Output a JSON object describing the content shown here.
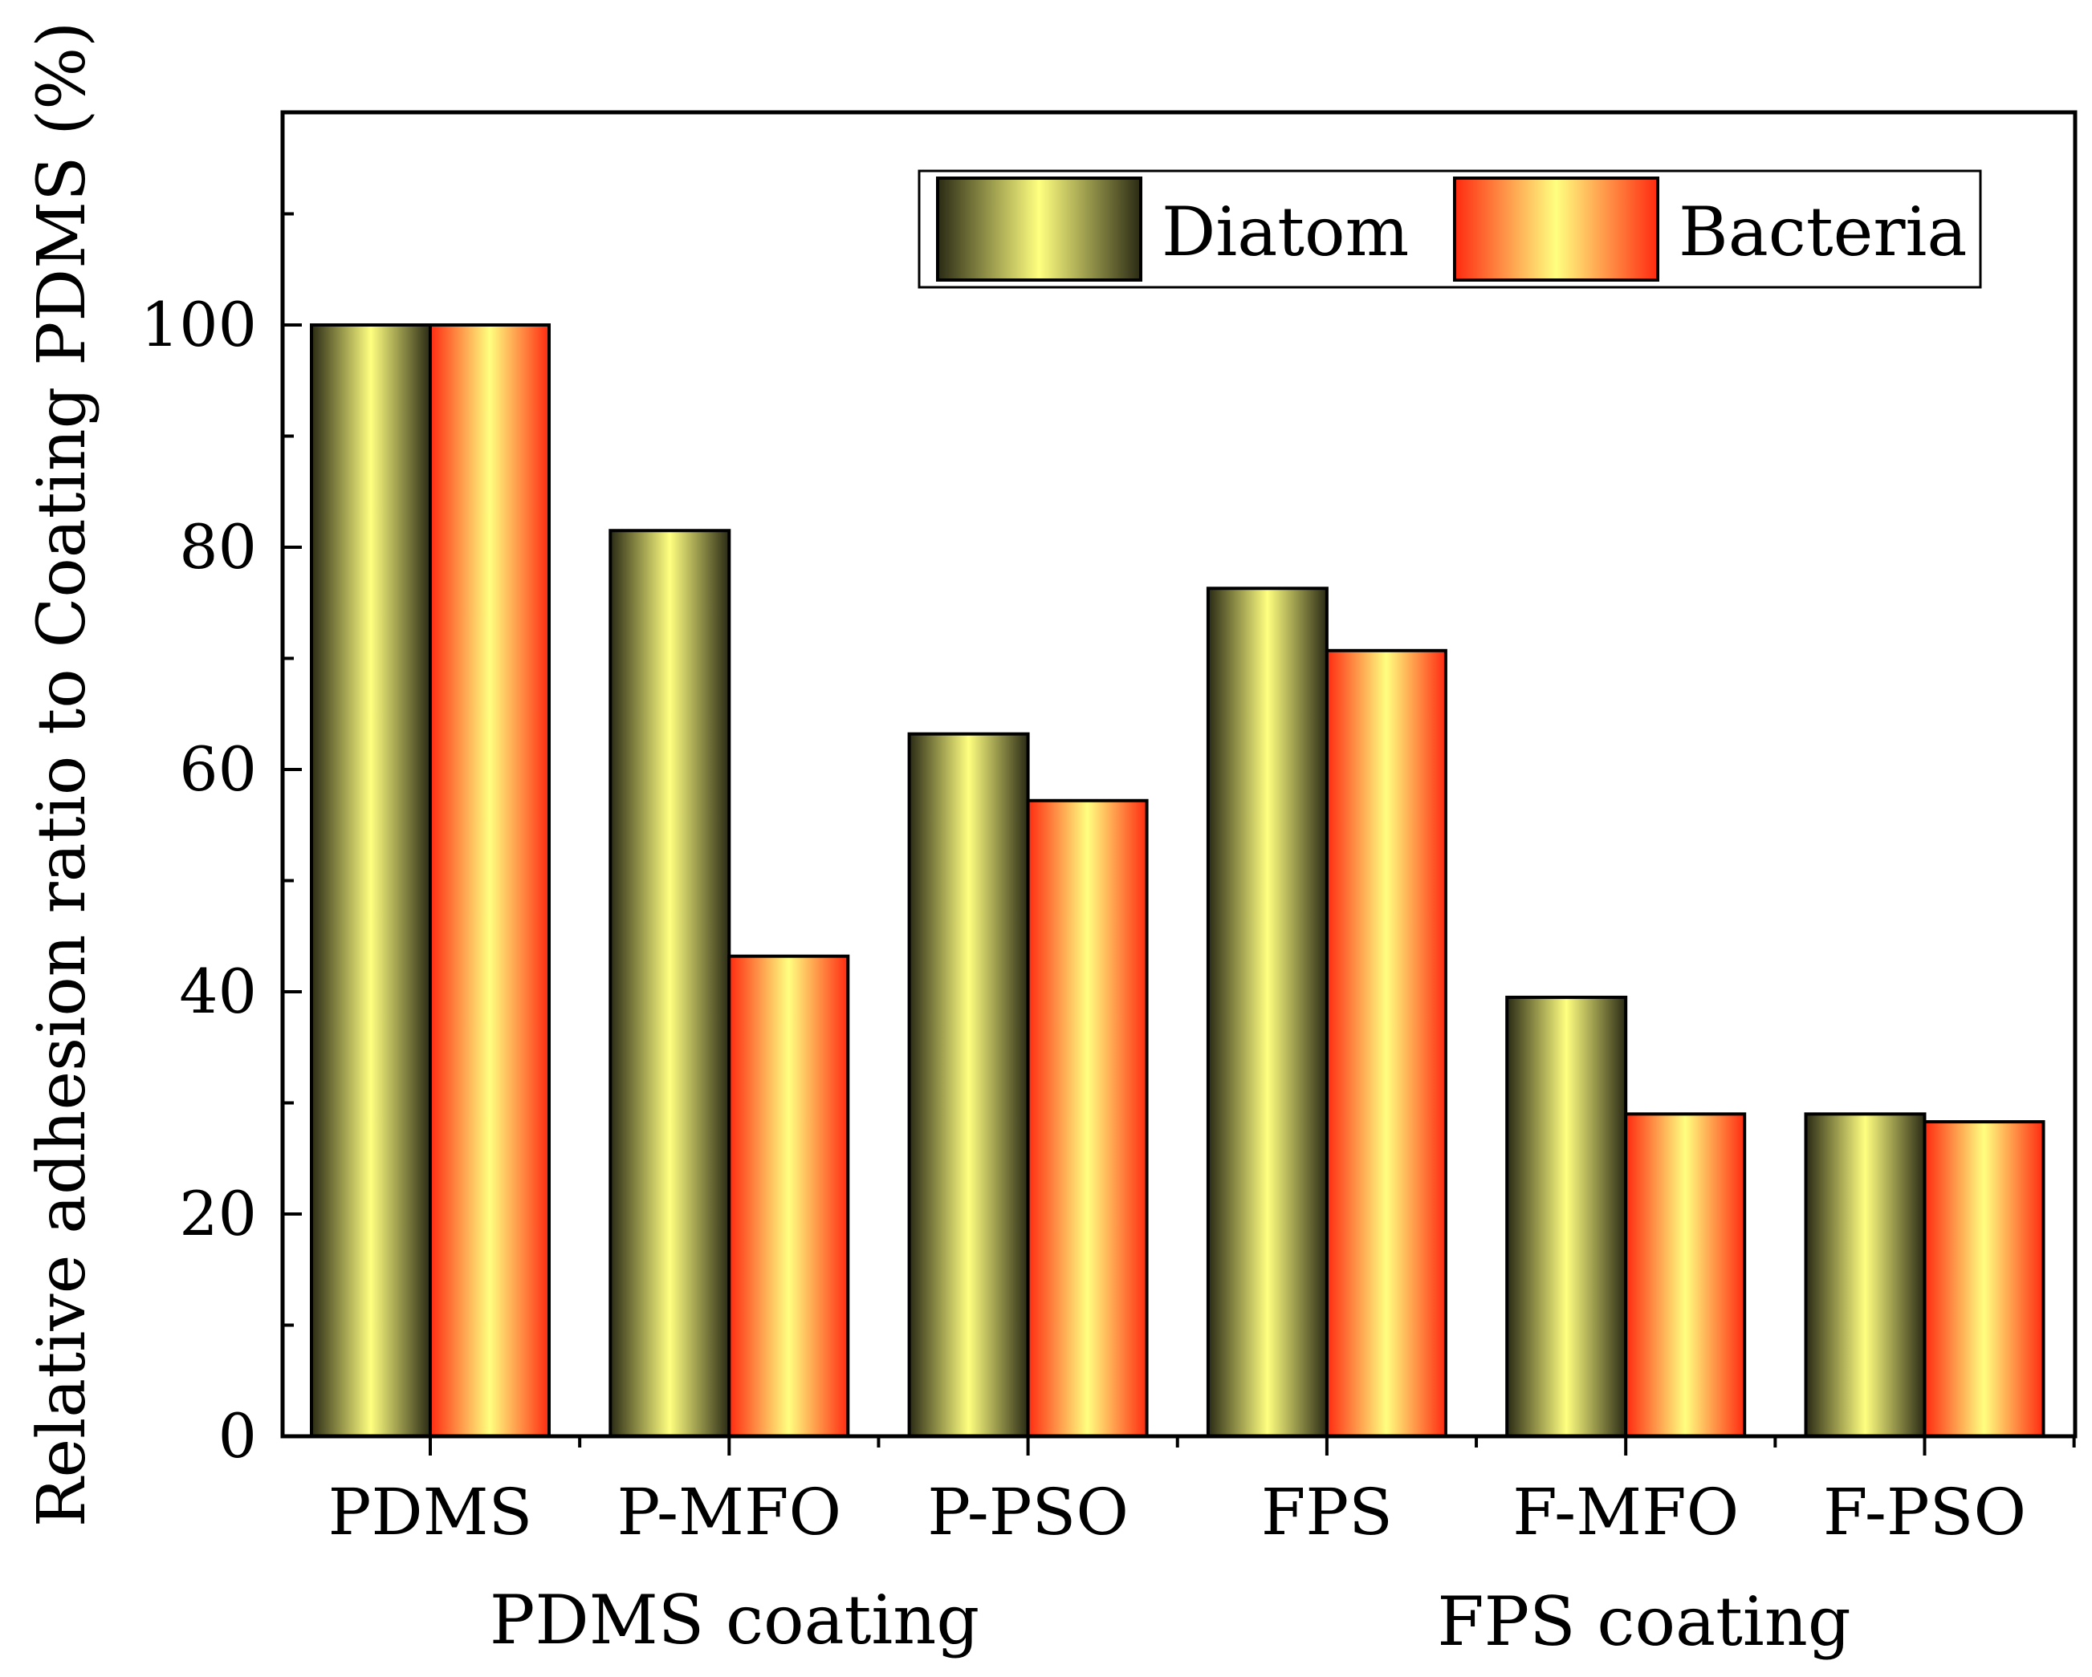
{
  "chart_data": {
    "type": "bar",
    "title": "",
    "xlabel": "",
    "ylabel": "Relative adhesion ratio to Coating PDMS (%)",
    "ylim": [
      0,
      120
    ],
    "yticks": [
      0,
      20,
      40,
      60,
      80,
      100
    ],
    "categories": [
      "PDMS",
      "P-MFO",
      "P-PSO",
      "FPS",
      "F-MFO",
      "F-PSO"
    ],
    "groups": [
      {
        "label": "PDMS coating",
        "categories": [
          "PDMS",
          "P-MFO",
          "P-PSO"
        ]
      },
      {
        "label": "FPS coating",
        "categories": [
          "FPS",
          "F-MFO",
          "F-PSO"
        ]
      }
    ],
    "series": [
      {
        "name": "Diatom",
        "values": [
          100,
          81.5,
          63.2,
          76.3,
          39.5,
          29.0
        ],
        "colors": {
          "edge": "#2a2a15",
          "center": "#ffff80"
        }
      },
      {
        "name": "Bacteria",
        "values": [
          100,
          43.2,
          57.2,
          70.7,
          29.0,
          28.3
        ],
        "colors": {
          "edge": "#ff2a10",
          "center": "#ffff80"
        }
      }
    ],
    "legend": {
      "position": "top-right"
    },
    "grid": false
  }
}
